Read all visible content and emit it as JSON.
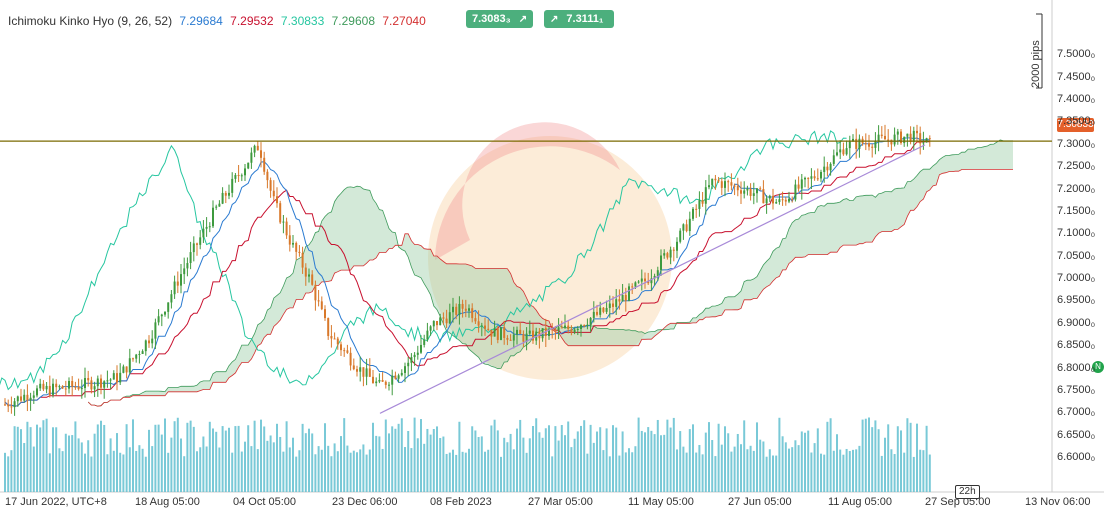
{
  "legend": {
    "name": "Ichimoku Kinko Hyo (9, 26, 52)",
    "values": [
      {
        "text": "7.29684",
        "color": "#2b7bd1"
      },
      {
        "text": "7.29532",
        "color": "#c8102e"
      },
      {
        "text": "7.30833",
        "color": "#26c6a0"
      },
      {
        "text": "7.29608",
        "color": "#3f9b5c"
      },
      {
        "text": "7.27040",
        "color": "#d32f2f"
      }
    ]
  },
  "quotes": [
    {
      "text": "7.3083₃",
      "arrow": "↗"
    },
    {
      "text": "7.3111₁",
      "arrow": "↗"
    }
  ],
  "price_tag": "7.30833",
  "green_tag": "N",
  "pips_label": "2000 pips",
  "bar_count": "22h",
  "colors": {
    "candle_up": "#3e9a3e",
    "candle_down": "#d8782a",
    "volume": "#62bfd0",
    "kumo_fill": "#9ecfa9",
    "tenkan": "#2b7bd1",
    "kijun": "#c8102e",
    "chikou": "#26c6a0",
    "price_line": "#7a6a00",
    "trend_line": "#a88ad8",
    "price_tag": "#e4602a",
    "green_tag": "#21a34b"
  },
  "chart_data": {
    "type": "candlestick",
    "title": "",
    "xlabel": "",
    "ylabel": "",
    "ylim": [
      6.56,
      7.55
    ],
    "y_ticks": [
      "7.5000₀",
      "7.4500₀",
      "7.4000₀",
      "7.3500₀",
      "7.3000₀",
      "7.2500₀",
      "7.2000₀",
      "7.1500₀",
      "7.1000₀",
      "7.0500₀",
      "7.0000₀",
      "6.9500₀",
      "6.9000₀",
      "6.8500₀",
      "6.8000₀",
      "6.7500₀",
      "6.7000₀",
      "6.6500₀",
      "6.6000₀"
    ],
    "y_tick_values": [
      7.5,
      7.45,
      7.4,
      7.35,
      7.3,
      7.25,
      7.2,
      7.15,
      7.1,
      7.05,
      7.0,
      6.95,
      6.9,
      6.85,
      6.8,
      6.75,
      6.7,
      6.65,
      6.6
    ],
    "x_ticks": [
      "17 Jun 2022, UTC+8",
      "18 Aug 05:00",
      "04 Oct 05:00",
      "23 Dec 06:00",
      "08 Feb 2023",
      "27 Mar 05:00",
      "11 May 05:00",
      "27 Jun 05:00",
      "11 Aug 05:00",
      "27 Sep 05:00",
      "13 Nov 06:00"
    ],
    "x_tick_dates": [
      "2022-06-17",
      "2022-08-18",
      "2022-10-04",
      "2022-12-23",
      "2023-02-08",
      "2023-03-27",
      "2023-05-11",
      "2023-06-27",
      "2023-08-11",
      "2023-09-27",
      "2023-11-13"
    ],
    "last_price": 7.30833,
    "trend_line": {
      "from": [
        "2023-01-15",
        6.7
      ],
      "to": [
        "2023-09-27",
        7.3
      ]
    },
    "price_points": [
      {
        "date": "2022-06-17",
        "price": 6.72
      },
      {
        "date": "2022-07-01",
        "price": 6.75
      },
      {
        "date": "2022-07-20",
        "price": 6.76
      },
      {
        "date": "2022-08-10",
        "price": 6.78
      },
      {
        "date": "2022-08-25",
        "price": 6.87
      },
      {
        "date": "2022-09-10",
        "price": 7.02
      },
      {
        "date": "2022-09-25",
        "price": 7.15
      },
      {
        "date": "2022-10-10",
        "price": 7.24
      },
      {
        "date": "2022-10-25",
        "price": 7.3
      },
      {
        "date": "2022-11-05",
        "price": 7.18
      },
      {
        "date": "2022-11-20",
        "price": 7.08
      },
      {
        "date": "2022-12-05",
        "price": 7.0
      },
      {
        "date": "2022-12-20",
        "price": 6.88
      },
      {
        "date": "2023-01-05",
        "price": 6.8
      },
      {
        "date": "2023-01-15",
        "price": 6.76
      },
      {
        "date": "2023-01-30",
        "price": 6.82
      },
      {
        "date": "2023-02-10",
        "price": 6.9
      },
      {
        "date": "2023-02-25",
        "price": 6.94
      },
      {
        "date": "2023-03-10",
        "price": 6.88
      },
      {
        "date": "2023-03-27",
        "price": 6.87
      },
      {
        "date": "2023-04-15",
        "price": 6.89
      },
      {
        "date": "2023-05-01",
        "price": 6.93
      },
      {
        "date": "2023-05-20",
        "price": 7.0
      },
      {
        "date": "2023-06-05",
        "price": 7.1
      },
      {
        "date": "2023-06-20",
        "price": 7.22
      },
      {
        "date": "2023-07-05",
        "price": 7.2
      },
      {
        "date": "2023-07-20",
        "price": 7.17
      },
      {
        "date": "2023-08-05",
        "price": 7.23
      },
      {
        "date": "2023-08-20",
        "price": 7.3
      },
      {
        "date": "2023-09-05",
        "price": 7.31
      },
      {
        "date": "2023-09-20",
        "price": 7.32
      },
      {
        "date": "2023-09-30",
        "price": 7.3
      }
    ]
  }
}
